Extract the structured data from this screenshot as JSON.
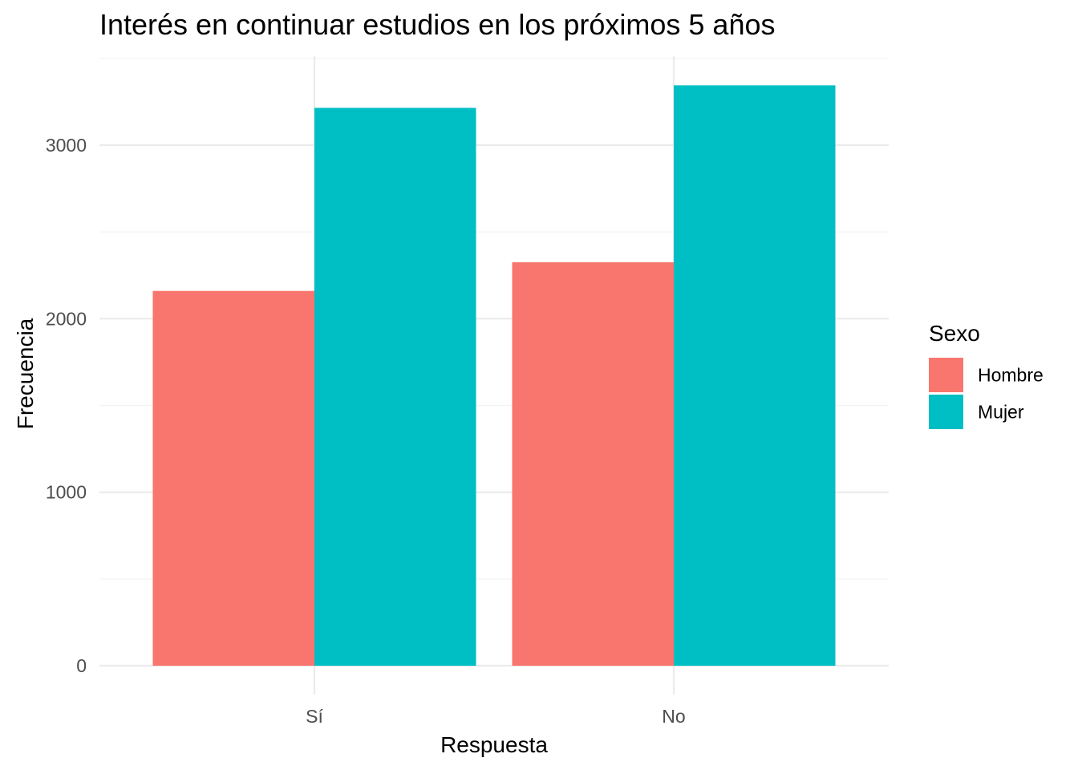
{
  "chart_data": {
    "type": "bar",
    "title": "Interés en continuar estudios en los próximos 5 años",
    "xlabel": "Respuesta",
    "ylabel": "Frecuencia",
    "categories": [
      "Sí",
      "No"
    ],
    "series": [
      {
        "name": "Hombre",
        "color": "#F8766D",
        "values": [
          2160,
          2325
        ]
      },
      {
        "name": "Mujer",
        "color": "#00BFC4",
        "values": [
          3215,
          3345
        ]
      }
    ],
    "y_ticks": [
      0,
      1000,
      2000,
      3000
    ],
    "ylim": [
      0,
      3500
    ],
    "legend": {
      "title": "Sexo",
      "position": "right"
    },
    "grid": true
  }
}
